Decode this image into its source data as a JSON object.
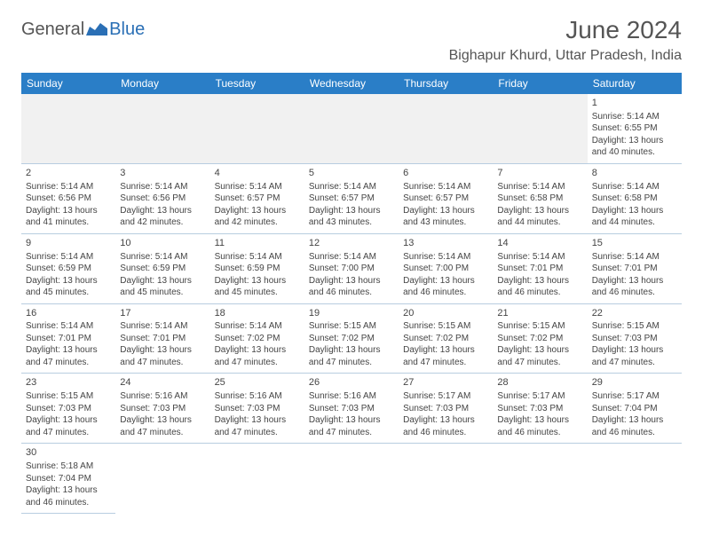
{
  "logo": {
    "part1": "General",
    "part2": "Blue"
  },
  "header": {
    "title": "June 2024",
    "location": "Bighapur Khurd, Uttar Pradesh, India"
  },
  "colors": {
    "header_bg": "#2a7ec7",
    "header_text": "#ffffff",
    "cell_border": "#b8cde0",
    "text": "#444444",
    "logo_gray": "#555555",
    "logo_blue": "#2a6fb5"
  },
  "dayNames": [
    "Sunday",
    "Monday",
    "Tuesday",
    "Wednesday",
    "Thursday",
    "Friday",
    "Saturday"
  ],
  "weeks": [
    [
      null,
      null,
      null,
      null,
      null,
      null,
      {
        "d": "1",
        "sr": "Sunrise: 5:14 AM",
        "ss": "Sunset: 6:55 PM",
        "dl": "Daylight: 13 hours and 40 minutes."
      }
    ],
    [
      {
        "d": "2",
        "sr": "Sunrise: 5:14 AM",
        "ss": "Sunset: 6:56 PM",
        "dl": "Daylight: 13 hours and 41 minutes."
      },
      {
        "d": "3",
        "sr": "Sunrise: 5:14 AM",
        "ss": "Sunset: 6:56 PM",
        "dl": "Daylight: 13 hours and 42 minutes."
      },
      {
        "d": "4",
        "sr": "Sunrise: 5:14 AM",
        "ss": "Sunset: 6:57 PM",
        "dl": "Daylight: 13 hours and 42 minutes."
      },
      {
        "d": "5",
        "sr": "Sunrise: 5:14 AM",
        "ss": "Sunset: 6:57 PM",
        "dl": "Daylight: 13 hours and 43 minutes."
      },
      {
        "d": "6",
        "sr": "Sunrise: 5:14 AM",
        "ss": "Sunset: 6:57 PM",
        "dl": "Daylight: 13 hours and 43 minutes."
      },
      {
        "d": "7",
        "sr": "Sunrise: 5:14 AM",
        "ss": "Sunset: 6:58 PM",
        "dl": "Daylight: 13 hours and 44 minutes."
      },
      {
        "d": "8",
        "sr": "Sunrise: 5:14 AM",
        "ss": "Sunset: 6:58 PM",
        "dl": "Daylight: 13 hours and 44 minutes."
      }
    ],
    [
      {
        "d": "9",
        "sr": "Sunrise: 5:14 AM",
        "ss": "Sunset: 6:59 PM",
        "dl": "Daylight: 13 hours and 45 minutes."
      },
      {
        "d": "10",
        "sr": "Sunrise: 5:14 AM",
        "ss": "Sunset: 6:59 PM",
        "dl": "Daylight: 13 hours and 45 minutes."
      },
      {
        "d": "11",
        "sr": "Sunrise: 5:14 AM",
        "ss": "Sunset: 6:59 PM",
        "dl": "Daylight: 13 hours and 45 minutes."
      },
      {
        "d": "12",
        "sr": "Sunrise: 5:14 AM",
        "ss": "Sunset: 7:00 PM",
        "dl": "Daylight: 13 hours and 46 minutes."
      },
      {
        "d": "13",
        "sr": "Sunrise: 5:14 AM",
        "ss": "Sunset: 7:00 PM",
        "dl": "Daylight: 13 hours and 46 minutes."
      },
      {
        "d": "14",
        "sr": "Sunrise: 5:14 AM",
        "ss": "Sunset: 7:01 PM",
        "dl": "Daylight: 13 hours and 46 minutes."
      },
      {
        "d": "15",
        "sr": "Sunrise: 5:14 AM",
        "ss": "Sunset: 7:01 PM",
        "dl": "Daylight: 13 hours and 46 minutes."
      }
    ],
    [
      {
        "d": "16",
        "sr": "Sunrise: 5:14 AM",
        "ss": "Sunset: 7:01 PM",
        "dl": "Daylight: 13 hours and 47 minutes."
      },
      {
        "d": "17",
        "sr": "Sunrise: 5:14 AM",
        "ss": "Sunset: 7:01 PM",
        "dl": "Daylight: 13 hours and 47 minutes."
      },
      {
        "d": "18",
        "sr": "Sunrise: 5:14 AM",
        "ss": "Sunset: 7:02 PM",
        "dl": "Daylight: 13 hours and 47 minutes."
      },
      {
        "d": "19",
        "sr": "Sunrise: 5:15 AM",
        "ss": "Sunset: 7:02 PM",
        "dl": "Daylight: 13 hours and 47 minutes."
      },
      {
        "d": "20",
        "sr": "Sunrise: 5:15 AM",
        "ss": "Sunset: 7:02 PM",
        "dl": "Daylight: 13 hours and 47 minutes."
      },
      {
        "d": "21",
        "sr": "Sunrise: 5:15 AM",
        "ss": "Sunset: 7:02 PM",
        "dl": "Daylight: 13 hours and 47 minutes."
      },
      {
        "d": "22",
        "sr": "Sunrise: 5:15 AM",
        "ss": "Sunset: 7:03 PM",
        "dl": "Daylight: 13 hours and 47 minutes."
      }
    ],
    [
      {
        "d": "23",
        "sr": "Sunrise: 5:15 AM",
        "ss": "Sunset: 7:03 PM",
        "dl": "Daylight: 13 hours and 47 minutes."
      },
      {
        "d": "24",
        "sr": "Sunrise: 5:16 AM",
        "ss": "Sunset: 7:03 PM",
        "dl": "Daylight: 13 hours and 47 minutes."
      },
      {
        "d": "25",
        "sr": "Sunrise: 5:16 AM",
        "ss": "Sunset: 7:03 PM",
        "dl": "Daylight: 13 hours and 47 minutes."
      },
      {
        "d": "26",
        "sr": "Sunrise: 5:16 AM",
        "ss": "Sunset: 7:03 PM",
        "dl": "Daylight: 13 hours and 47 minutes."
      },
      {
        "d": "27",
        "sr": "Sunrise: 5:17 AM",
        "ss": "Sunset: 7:03 PM",
        "dl": "Daylight: 13 hours and 46 minutes."
      },
      {
        "d": "28",
        "sr": "Sunrise: 5:17 AM",
        "ss": "Sunset: 7:03 PM",
        "dl": "Daylight: 13 hours and 46 minutes."
      },
      {
        "d": "29",
        "sr": "Sunrise: 5:17 AM",
        "ss": "Sunset: 7:04 PM",
        "dl": "Daylight: 13 hours and 46 minutes."
      }
    ],
    [
      {
        "d": "30",
        "sr": "Sunrise: 5:18 AM",
        "ss": "Sunset: 7:04 PM",
        "dl": "Daylight: 13 hours and 46 minutes."
      },
      null,
      null,
      null,
      null,
      null,
      null
    ]
  ]
}
